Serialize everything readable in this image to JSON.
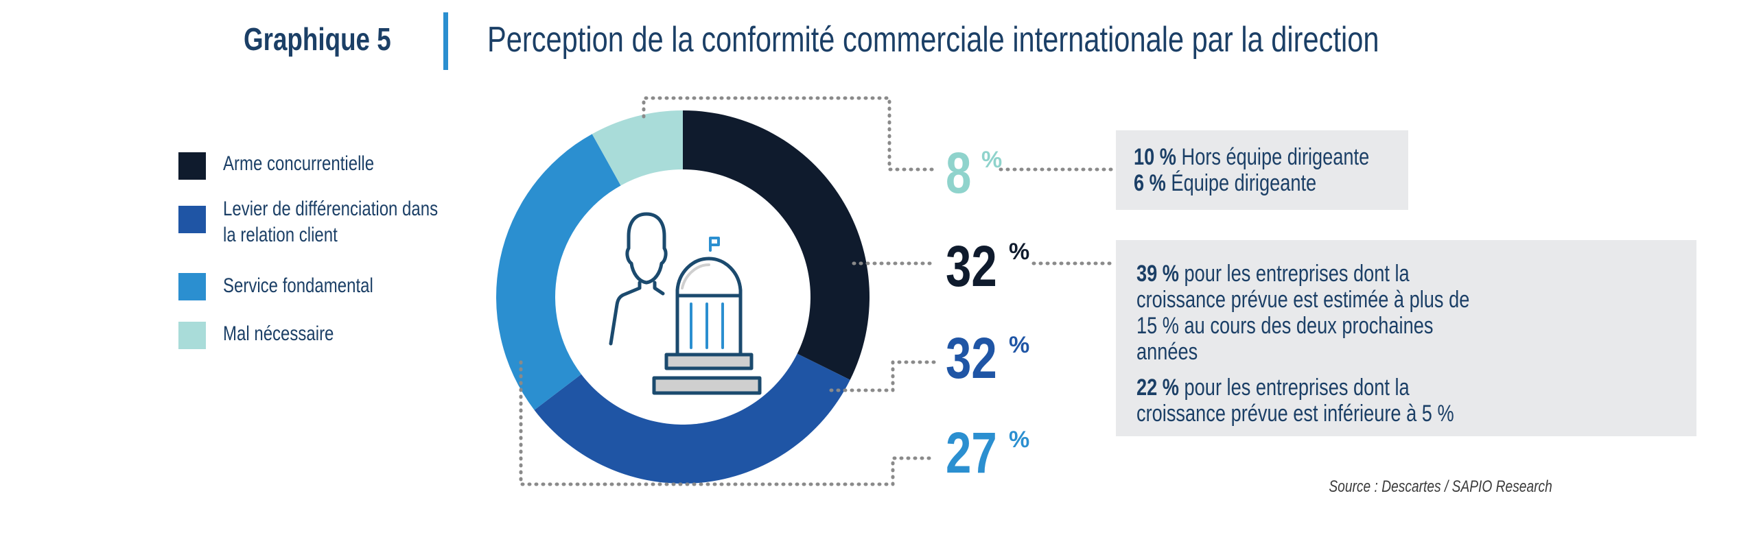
{
  "header": {
    "graph_label": "Graphique 5",
    "title": "Perception de la conformité commerciale internationale par la direction"
  },
  "colors": {
    "dark": "#0f1b2d",
    "blue": "#1f55a5",
    "light_blue": "#2b8fd0",
    "mint": "#a9dcd9",
    "mint_label": "#8fd3cc",
    "box_bg": "#e8e9eb",
    "text": "#1b3f66"
  },
  "chart_data": {
    "type": "pie",
    "subtype": "donut",
    "start": "top, clockwise",
    "legend_position": "left",
    "series": [
      {
        "name": "Arme concurrentielle",
        "value": 32,
        "label": "32",
        "color": "#0f1b2d"
      },
      {
        "name": "Levier de différenciation dans la relation client",
        "value": 32,
        "label": "32",
        "color": "#1f55a5"
      },
      {
        "name": "Service fondamental",
        "value": 27,
        "label": "27",
        "color": "#2b8fd0"
      },
      {
        "name": "Mal nécessaire",
        "value": 8,
        "label": "8",
        "color": "#a9dcd9"
      }
    ],
    "percent_sign": "%",
    "center_icon": "executive-and-government-building-icon"
  },
  "legend": {
    "items": [
      {
        "line1": "Arme concurrentielle",
        "line2": ""
      },
      {
        "line1": "Levier de différenciation dans",
        "line2": "la relation client"
      },
      {
        "line1": "Service fondamental",
        "line2": ""
      },
      {
        "line1": "Mal nécessaire",
        "line2": ""
      }
    ]
  },
  "callouts": {
    "mal_necessaire": {
      "lines": [
        {
          "bold": "10 %",
          "text": " Hors équipe dirigeante"
        },
        {
          "bold": "6 %",
          "text": " Équipe dirigeante"
        }
      ]
    },
    "arme_concurrentielle": {
      "paragraphs": [
        {
          "bold": "39 %",
          "text": " pour les entreprises dont la croissance prévue est estimée à plus de 15 % au cours des deux prochaines années"
        },
        {
          "bold": "22 %",
          "text": " pour les entreprises dont la croissance prévue est inférieure à 5 %"
        }
      ]
    }
  },
  "source": "Source : Descartes / SAPIO Research"
}
